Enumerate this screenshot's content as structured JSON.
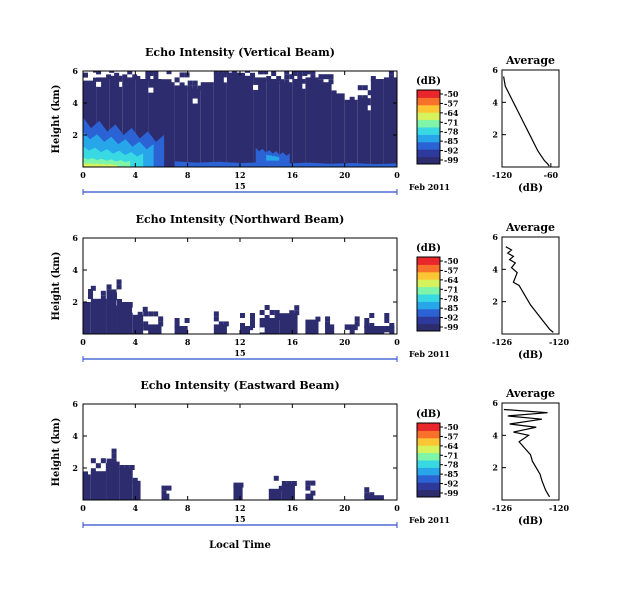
{
  "figure": {
    "xlabel": "Local Time",
    "date_label": "Feb 2011",
    "cb_unit": "(dB)",
    "avg_title": "Average",
    "avg_xlabel": "(dB)"
  },
  "colorscale": [
    "#2c2c6e",
    "#2d3a9c",
    "#2b62d4",
    "#27a6ea",
    "#38d9e3",
    "#7ef5a8",
    "#d6f35e",
    "#fcc533",
    "#f7712a",
    "#e8262b"
  ],
  "chart_data": [
    {
      "type": "heatmap",
      "title": "Echo Intensity (Vertical Beam)",
      "ylabel": "Height (km)",
      "xlim": [
        0,
        24
      ],
      "ylim": [
        0,
        6
      ],
      "x_ticks": [
        "0",
        "4",
        "8",
        "12",
        "16",
        "20",
        "0"
      ],
      "y_ticks": [
        "6",
        "4",
        "2"
      ],
      "day_label": "15",
      "colorbar_ticks": [
        "-50",
        "-57",
        "-64",
        "-71",
        "-78",
        "-85",
        "-92",
        "-99"
      ],
      "coverage": [
        {
          "x": [
            0,
            1
          ],
          "top": 5.4
        },
        {
          "x": [
            1,
            2
          ],
          "top": 5.6
        },
        {
          "x": [
            2,
            3
          ],
          "top": 5.7
        },
        {
          "x": [
            3,
            4
          ],
          "top": 5.6
        },
        {
          "x": [
            4,
            5
          ],
          "top": 5.5
        },
        {
          "x": [
            5,
            6
          ],
          "top": 5.5
        },
        {
          "x": [
            6,
            7
          ],
          "top": 5.3
        },
        {
          "x": [
            7,
            8
          ],
          "top": 5.1
        },
        {
          "x": [
            8,
            9
          ],
          "top": 4.9
        },
        {
          "x": [
            9,
            10
          ],
          "top": 5.3
        },
        {
          "x": [
            10,
            11
          ],
          "top": 5.9
        },
        {
          "x": [
            11,
            12
          ],
          "top": 5.9
        },
        {
          "x": [
            12,
            13
          ],
          "top": 5.7
        },
        {
          "x": [
            13,
            14
          ],
          "top": 5.6
        },
        {
          "x": [
            14,
            15
          ],
          "top": 5.5
        },
        {
          "x": [
            15,
            16
          ],
          "top": 5.3
        },
        {
          "x": [
            16,
            17
          ],
          "top": 5.5
        },
        {
          "x": [
            17,
            18
          ],
          "top": 5.6
        },
        {
          "x": [
            18,
            19
          ],
          "top": 5.3
        },
        {
          "x": [
            19,
            20
          ],
          "top": 4.6
        },
        {
          "x": [
            20,
            21
          ],
          "top": 4.2
        },
        {
          "x": [
            21,
            22
          ],
          "top": 4.3
        },
        {
          "x": [
            22,
            23
          ],
          "top": 5.5
        },
        {
          "x": [
            23,
            24
          ],
          "top": 5.6
        }
      ],
      "blobs": [
        {
          "x": [
            0,
            6.2
          ],
          "y": [
            0,
            3.1
          ],
          "level": 2
        },
        {
          "x": [
            0,
            5.4
          ],
          "y": [
            0,
            2.2
          ],
          "level": 3
        },
        {
          "x": [
            0,
            4.6
          ],
          "y": [
            0,
            1.3
          ],
          "level": 4
        },
        {
          "x": [
            0,
            3.6
          ],
          "y": [
            0,
            0.6
          ],
          "level": 5
        },
        {
          "x": [
            0,
            2.6
          ],
          "y": [
            0,
            0.25
          ],
          "level": 6
        },
        {
          "x": [
            7,
            24
          ],
          "y": [
            0,
            0.35
          ],
          "level": 2
        },
        {
          "x": [
            13.2,
            15.8
          ],
          "y": [
            0.2,
            1.2
          ],
          "level": 2
        },
        {
          "x": [
            14,
            15
          ],
          "y": [
            0.4,
            0.8
          ],
          "level": 3
        }
      ],
      "average": {
        "xlim": [
          -120,
          -50
        ],
        "x_ticks": [
          "-120",
          "-60"
        ],
        "y_ticks": [
          "6",
          "4",
          "2"
        ],
        "x": [
          -118,
          -116,
          -112,
          -108,
          -104,
          -100,
          -96,
          -92,
          -88,
          -84,
          -80,
          -76,
          -72,
          -68,
          -64,
          -62
        ],
        "y": [
          5.6,
          5.0,
          4.6,
          4.2,
          3.8,
          3.4,
          3.0,
          2.6,
          2.2,
          1.8,
          1.4,
          1.0,
          0.7,
          0.4,
          0.2,
          0.05
        ]
      }
    },
    {
      "type": "heatmap",
      "title": "Echo Intensity (Northward Beam)",
      "ylabel": "Height (km)",
      "xlim": [
        0,
        24
      ],
      "ylim": [
        0,
        6
      ],
      "x_ticks": [
        "0",
        "4",
        "8",
        "12",
        "16",
        "20",
        "0"
      ],
      "y_ticks": [
        "6",
        "4",
        "2"
      ],
      "day_label": "15",
      "colorbar_ticks": [
        "-50",
        "-57",
        "-64",
        "-71",
        "-78",
        "-85",
        "-92",
        "-99"
      ],
      "coverage": [
        {
          "x": [
            0,
            0.6
          ],
          "top": 2.0
        },
        {
          "x": [
            0.6,
            1.8
          ],
          "top": 2.2
        },
        {
          "x": [
            1.8,
            2.6
          ],
          "top": 2.6
        },
        {
          "x": [
            2.6,
            3.8
          ],
          "top": 2.0
        },
        {
          "x": [
            3.8,
            4.6
          ],
          "top": 1.2
        },
        {
          "x": [
            4.6,
            6
          ],
          "top": 0.6
        },
        {
          "x": [
            7,
            8
          ],
          "top": 0.5
        },
        {
          "x": [
            10,
            11
          ],
          "top": 0.6
        },
        {
          "x": [
            12,
            13
          ],
          "top": 0.5
        },
        {
          "x": [
            13.5,
            15
          ],
          "top": 1.0
        },
        {
          "x": [
            15,
            16.4
          ],
          "top": 1.3
        },
        {
          "x": [
            17,
            18
          ],
          "top": 0.9
        },
        {
          "x": [
            18.5,
            19.2
          ],
          "top": 0.6
        },
        {
          "x": [
            20,
            21
          ],
          "top": 0.6
        },
        {
          "x": [
            21.5,
            23.8
          ],
          "top": 0.5
        }
      ],
      "blobs": [],
      "average": {
        "xlim": [
          -126,
          -120
        ],
        "x_ticks": [
          "-126",
          "-120"
        ],
        "y_ticks": [
          "6",
          "4",
          "2"
        ],
        "x": [
          -125.6,
          -125.0,
          -125.4,
          -124.8,
          -125.2,
          -124.6,
          -125.0,
          -124.4,
          -124.8,
          -124.2,
          -123.8,
          -123.4,
          -123.0,
          -122.6,
          -122.2,
          -121.8,
          -121.4,
          -121.0,
          -120.6
        ],
        "y": [
          5.4,
          5.2,
          5.0,
          4.8,
          4.6,
          4.4,
          4.1,
          3.8,
          3.2,
          3.0,
          2.6,
          2.2,
          1.8,
          1.5,
          1.2,
          0.9,
          0.6,
          0.3,
          0.1
        ]
      }
    },
    {
      "type": "heatmap",
      "title": "Echo Intensity (Eastward Beam)",
      "ylabel": "Height (km)",
      "xlim": [
        0,
        24
      ],
      "ylim": [
        0,
        6
      ],
      "x_ticks": [
        "0",
        "4",
        "8",
        "12",
        "16",
        "20",
        "0"
      ],
      "y_ticks": [
        "6",
        "4",
        "2"
      ],
      "day_label": "15",
      "colorbar_ticks": [
        "-50",
        "-57",
        "-64",
        "-71",
        "-78",
        "-85",
        "-92",
        "-99"
      ],
      "coverage": [
        {
          "x": [
            0,
            0.6
          ],
          "top": 1.6
        },
        {
          "x": [
            0.6,
            1.8
          ],
          "top": 1.8
        },
        {
          "x": [
            1.8,
            2.8
          ],
          "top": 2.4
        },
        {
          "x": [
            2.8,
            3.8
          ],
          "top": 2.0
        },
        {
          "x": [
            3.8,
            4.4
          ],
          "top": 1.2
        },
        {
          "x": [
            6,
            6.6
          ],
          "top": 0.4
        },
        {
          "x": [
            11.5,
            12.2
          ],
          "top": 0.9
        },
        {
          "x": [
            14.2,
            15.2
          ],
          "top": 0.7
        },
        {
          "x": [
            15.2,
            16.2
          ],
          "top": 1.0
        },
        {
          "x": [
            17,
            17.6
          ],
          "top": 0.4
        },
        {
          "x": [
            21.5,
            23
          ],
          "top": 0.3
        }
      ],
      "blobs": [],
      "average": {
        "xlim": [
          -126,
          -120
        ],
        "x_ticks": [
          "-126",
          "-120"
        ],
        "y_ticks": [
          "6",
          "4",
          "2"
        ],
        "x": [
          -125.8,
          -121.2,
          -125.4,
          -121.8,
          -125.2,
          -122.4,
          -124.8,
          -123.2,
          -124.2,
          -123.6,
          -123.0,
          -122.8,
          -122.4,
          -122.0,
          -121.8,
          -121.4,
          -121.0
        ],
        "y": [
          5.6,
          5.4,
          5.2,
          5.0,
          4.7,
          4.5,
          4.2,
          4.0,
          3.6,
          3.2,
          2.8,
          2.4,
          2.0,
          1.6,
          1.2,
          0.6,
          0.2
        ]
      }
    }
  ]
}
